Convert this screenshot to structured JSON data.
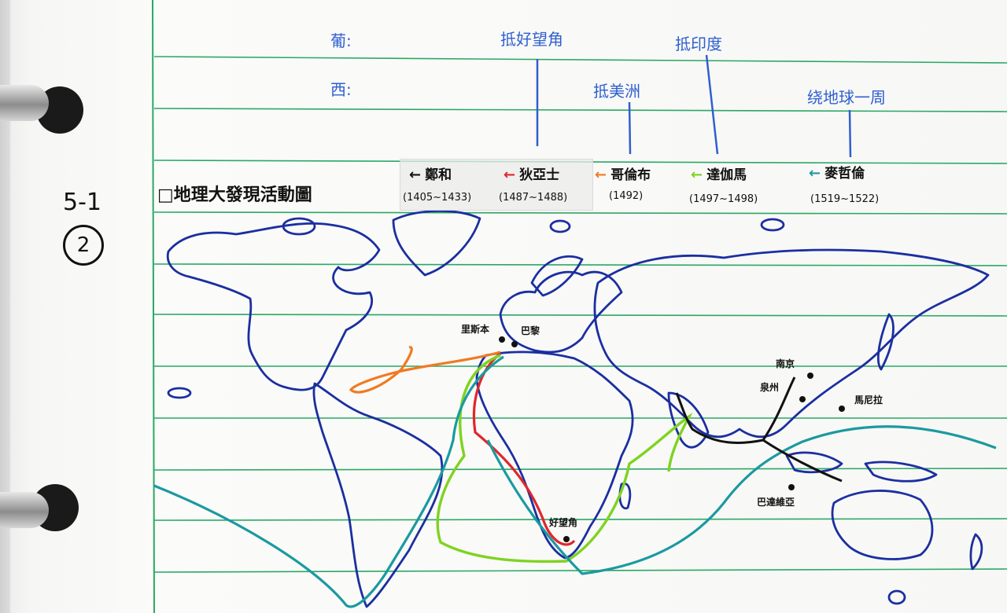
{
  "margin": {
    "unit": "5-1",
    "circled": "2"
  },
  "header": {
    "south_label": "葡:",
    "west_label": "西:",
    "south_milestones": [
      "抵好望角",
      "抵印度"
    ],
    "west_milestones": [
      "抵美洲",
      "绕地球一周"
    ]
  },
  "title": "□地理大發現活動圖",
  "legend": [
    {
      "name": "鄭和",
      "years": "(1405~1433)",
      "color": "#111111"
    },
    {
      "name": "狄亞士",
      "years": "(1487~1488)",
      "color": "#e0262b"
    },
    {
      "name": "哥倫布",
      "years": "(1492)",
      "color": "#f07a22"
    },
    {
      "name": "達伽馬",
      "years": "(1497~1498)",
      "color": "#7ed321"
    },
    {
      "name": "麥哲倫",
      "years": "(1519~1522)",
      "color": "#1a9aa0"
    }
  ],
  "cities": [
    "里斯本",
    "巴黎",
    "好望角",
    "南京",
    "泉州",
    "馬尼拉",
    "巴達維亞"
  ],
  "colors": {
    "outline": "#1b2fa0",
    "pen_blue": "#2f5fd0",
    "ruled": "#2aa866",
    "margin_rule": "#2aa866"
  }
}
